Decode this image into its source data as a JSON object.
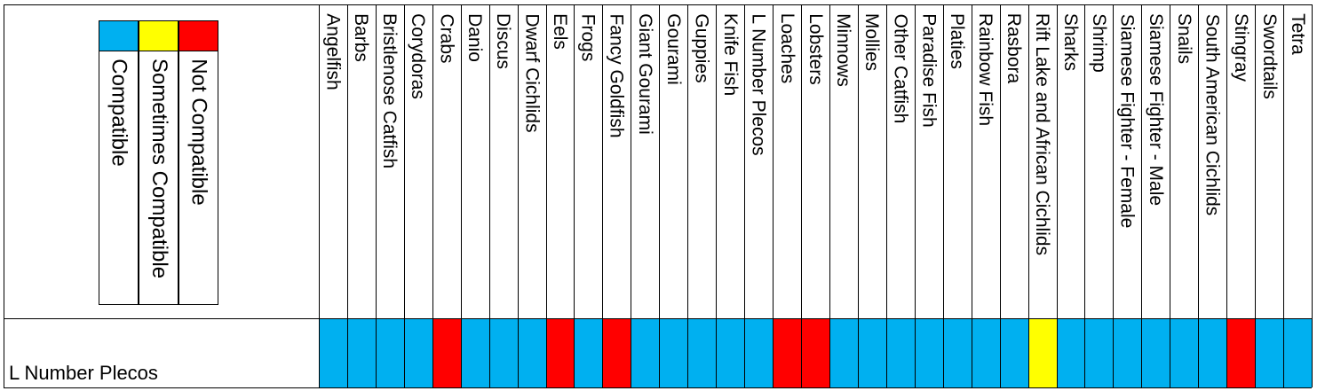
{
  "legend": {
    "items": [
      {
        "label": "Compatible",
        "color": "#00B0F0"
      },
      {
        "label": "Sometimes Compatible",
        "color": "#FFFF00"
      },
      {
        "label": "Not Compatible",
        "color": "#FF0000"
      }
    ]
  },
  "row": {
    "label": "L Number Plecos"
  },
  "columns": [
    {
      "name": "Angelfish",
      "status": "compatible"
    },
    {
      "name": "Barbs",
      "status": "compatible"
    },
    {
      "name": "Bristlenose Catfish",
      "status": "compatible"
    },
    {
      "name": "Corydoras",
      "status": "compatible"
    },
    {
      "name": "Crabs",
      "status": "not"
    },
    {
      "name": "Danio",
      "status": "compatible"
    },
    {
      "name": "Discus",
      "status": "compatible"
    },
    {
      "name": "Dwarf Cichlids",
      "status": "compatible"
    },
    {
      "name": "Eels",
      "status": "not"
    },
    {
      "name": "Frogs",
      "status": "compatible"
    },
    {
      "name": "Fancy Goldfish",
      "status": "not"
    },
    {
      "name": "Giant Gourami",
      "status": "compatible"
    },
    {
      "name": "Gourami",
      "status": "compatible"
    },
    {
      "name": "Guppies",
      "status": "compatible"
    },
    {
      "name": "Knife Fish",
      "status": "compatible"
    },
    {
      "name": "L Number Plecos",
      "status": "compatible"
    },
    {
      "name": "Loaches",
      "status": "not"
    },
    {
      "name": "Lobsters",
      "status": "not"
    },
    {
      "name": "Minnows",
      "status": "compatible"
    },
    {
      "name": "Mollies",
      "status": "compatible"
    },
    {
      "name": "Other Catfish",
      "status": "compatible"
    },
    {
      "name": "Paradise Fish",
      "status": "compatible"
    },
    {
      "name": "Platies",
      "status": "compatible"
    },
    {
      "name": "Rainbow Fish",
      "status": "compatible"
    },
    {
      "name": "Rasbora",
      "status": "compatible"
    },
    {
      "name": "Rift Lake and African Cichlids",
      "status": "sometimes"
    },
    {
      "name": "Sharks",
      "status": "compatible"
    },
    {
      "name": "Shrimp",
      "status": "compatible"
    },
    {
      "name": "Siamese Fighter - Female",
      "status": "compatible"
    },
    {
      "name": "Siamese Fighter - Male",
      "status": "compatible"
    },
    {
      "name": "Snails",
      "status": "compatible"
    },
    {
      "name": "South American Cichlids",
      "status": "compatible"
    },
    {
      "name": "Stingray",
      "status": "not"
    },
    {
      "name": "Swordtails",
      "status": "compatible"
    },
    {
      "name": "Tetra",
      "status": "compatible"
    }
  ],
  "status_colors": {
    "compatible": "#00B0F0",
    "sometimes": "#FFFF00",
    "not": "#FF0000"
  }
}
